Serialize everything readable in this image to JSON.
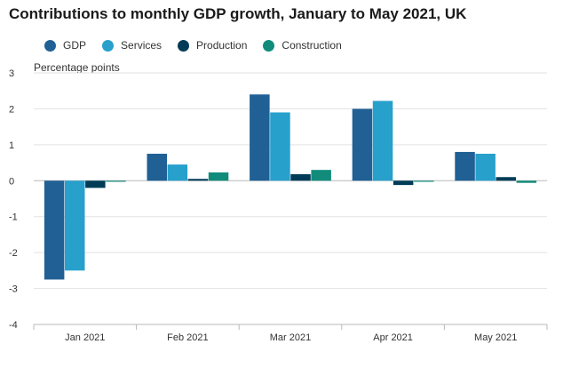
{
  "chart_data": {
    "type": "bar",
    "title": "Contributions to monthly GDP growth, January to May 2021, UK",
    "ylabel": "Percentage points",
    "xlabel": "",
    "categories": [
      "Jan 2021",
      "Feb 2021",
      "Mar 2021",
      "Apr 2021",
      "May 2021"
    ],
    "ylim": [
      -4,
      3
    ],
    "yticks": [
      3,
      2,
      1,
      0,
      -1,
      -2,
      -3,
      -4
    ],
    "yticklabels": [
      "3",
      "2",
      "1",
      "0",
      "-1",
      "-2",
      "-3",
      "-4"
    ],
    "grid": true,
    "legend_position": "top",
    "series": [
      {
        "name": "GDP",
        "color": "#206095",
        "values": [
          -2.75,
          0.75,
          2.4,
          2.0,
          0.8
        ]
      },
      {
        "name": "Services",
        "color": "#27a0cc",
        "values": [
          -2.5,
          0.45,
          1.9,
          2.22,
          0.75
        ]
      },
      {
        "name": "Production",
        "color": "#003c57",
        "values": [
          -0.2,
          0.05,
          0.18,
          -0.12,
          0.1
        ]
      },
      {
        "name": "Construction",
        "color": "#118c7b",
        "values": [
          -0.03,
          0.23,
          0.3,
          -0.03,
          -0.06
        ]
      }
    ]
  }
}
